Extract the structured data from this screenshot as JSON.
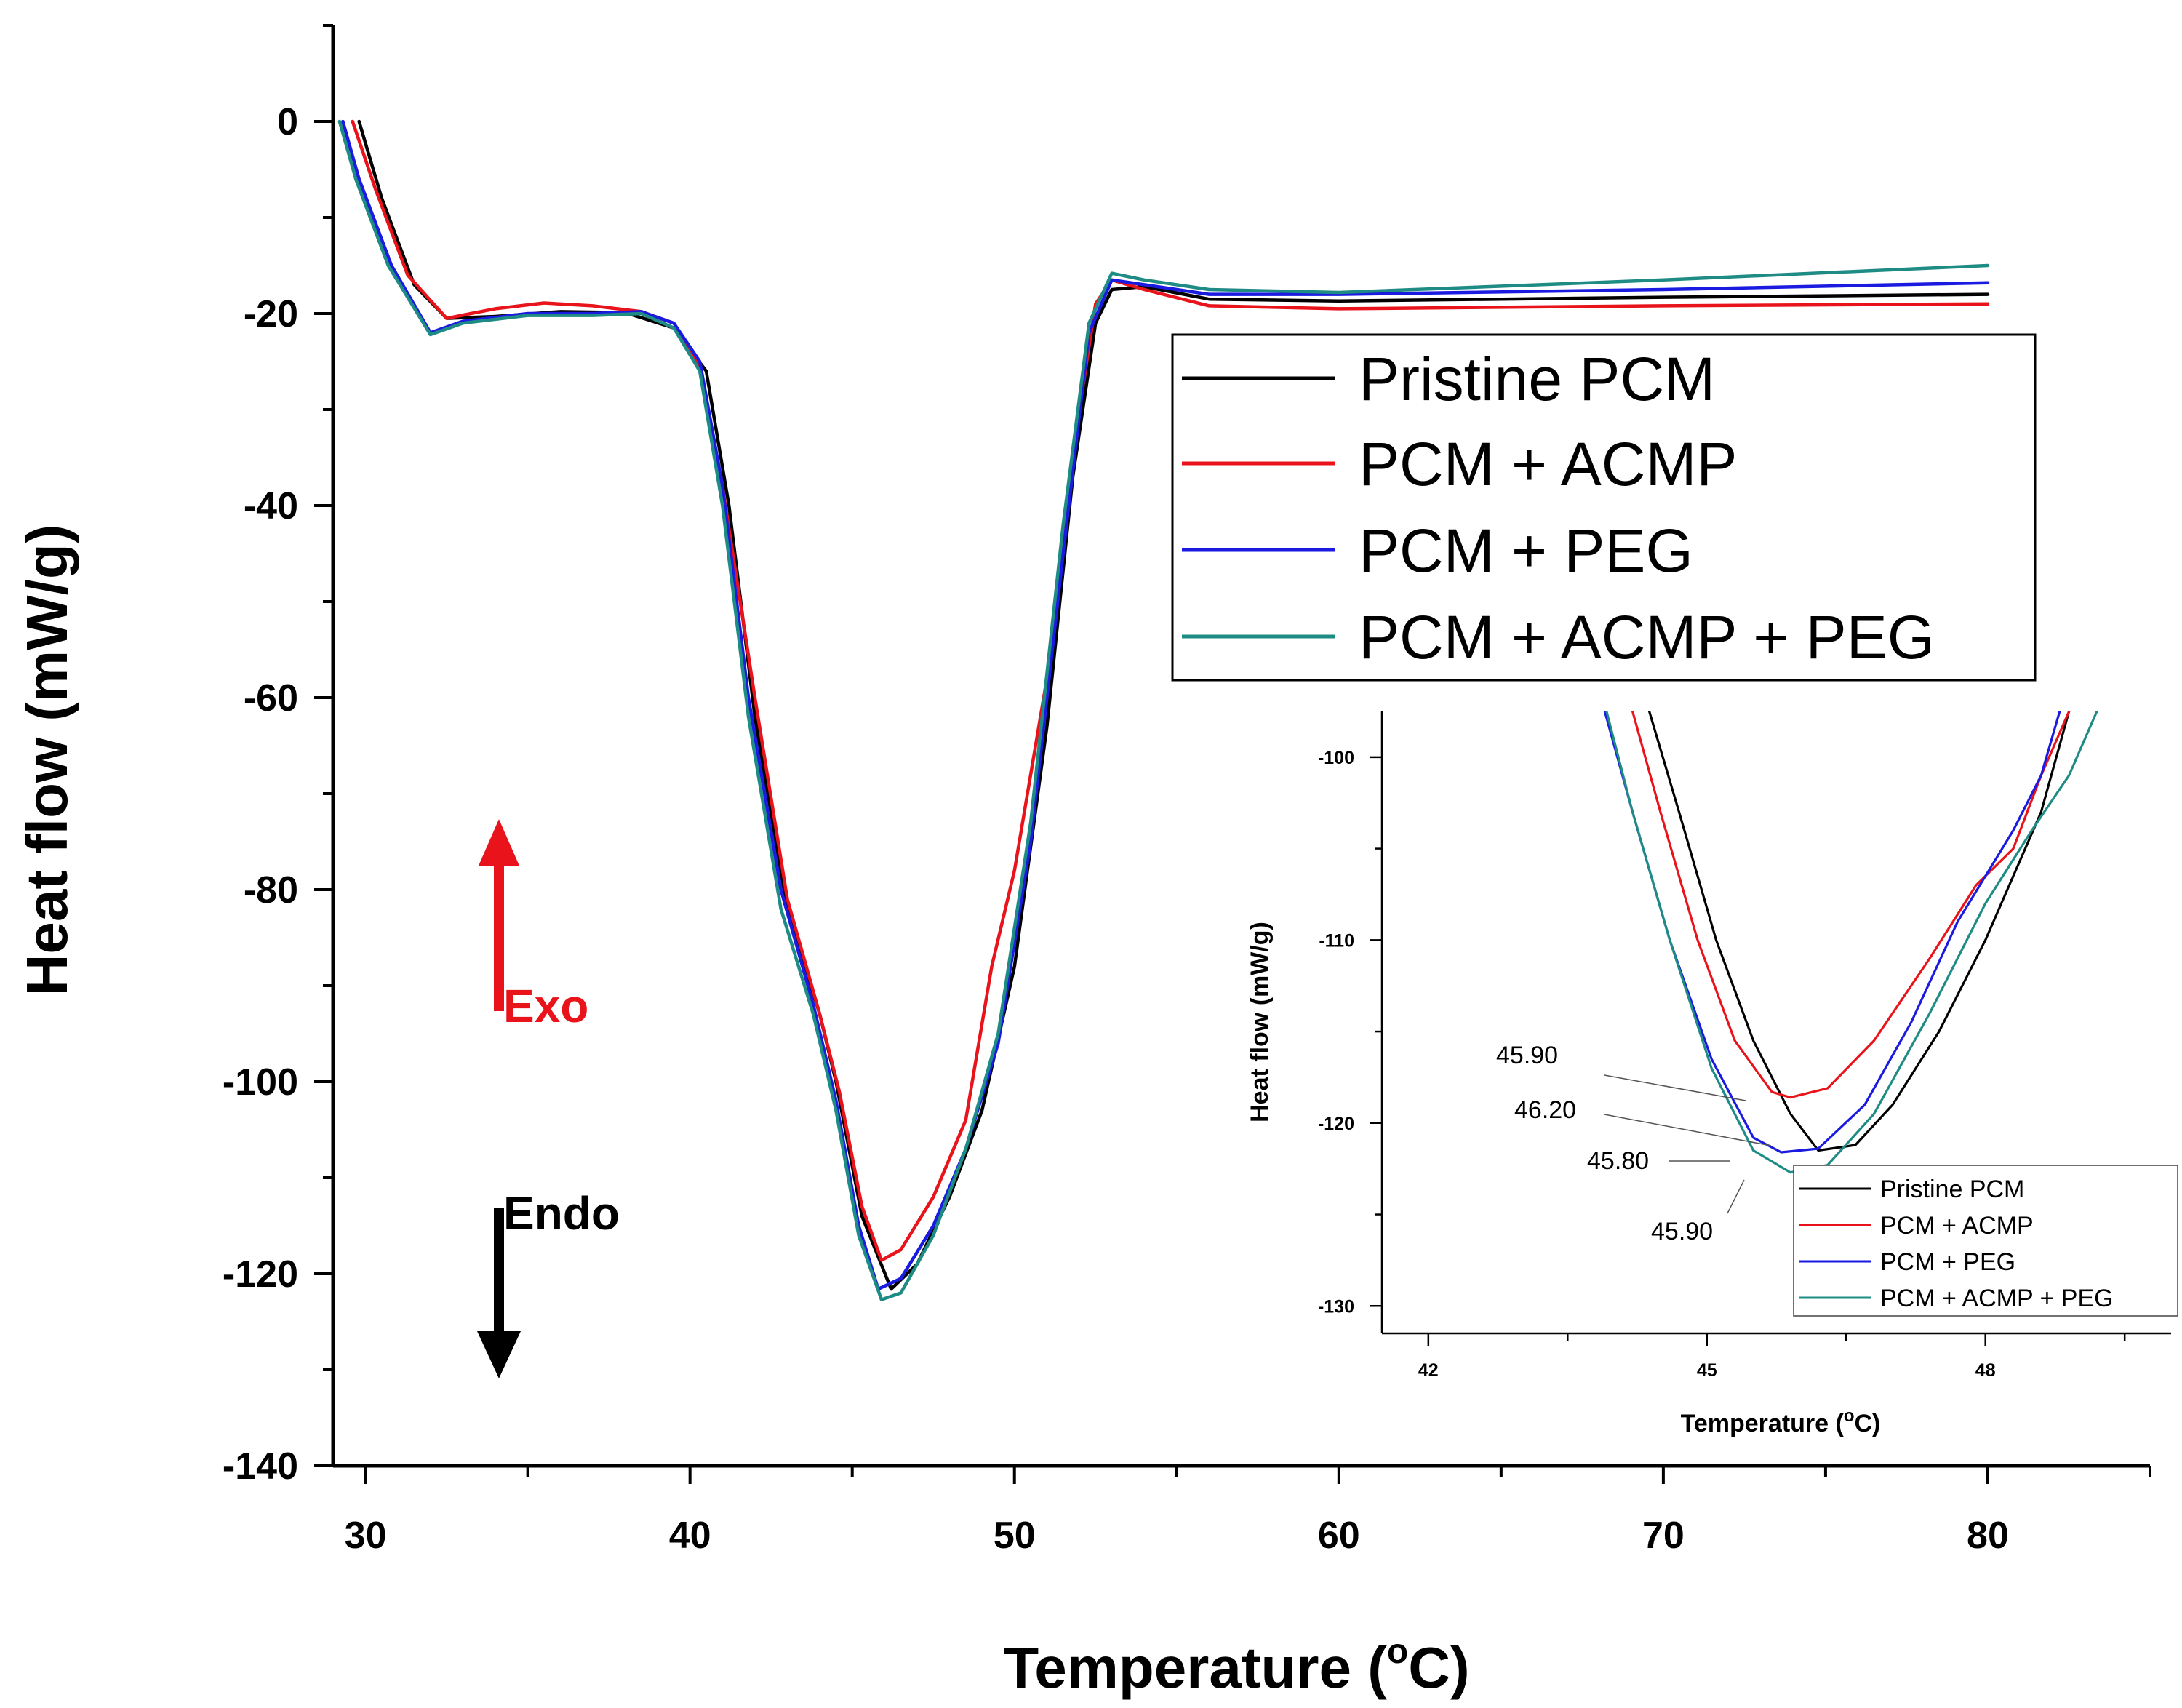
{
  "chart_data": [
    {
      "type": "line",
      "title": "",
      "xlabel": "Temperature (°C)",
      "xlabel_parts": {
        "main": "Temperature (",
        "sup": "o",
        "end": "C)"
      },
      "ylabel": "Heat flow (mW/g)",
      "xlim": [
        29,
        85
      ],
      "ylim": [
        -140,
        10
      ],
      "xticks": [
        30,
        40,
        50,
        60,
        70,
        80
      ],
      "yticks": [
        0,
        -20,
        -40,
        -60,
        -80,
        -100,
        -120,
        -140
      ],
      "xtick_labels": [
        "30",
        "40",
        "50",
        "60",
        "70",
        "80"
      ],
      "ytick_labels": [
        "0",
        "-20",
        "-40",
        "-60",
        "-80",
        "-100",
        "-120",
        "-140"
      ],
      "legend_position": "top-right",
      "series": [
        {
          "name": "Pristine PCM",
          "color": "#000000",
          "points": [
            [
              29.8,
              0
            ],
            [
              30.5,
              -8
            ],
            [
              31.5,
              -17
            ],
            [
              32.5,
              -20.5
            ],
            [
              34,
              -20.3
            ],
            [
              36,
              -19.8
            ],
            [
              38,
              -19.9
            ],
            [
              39.5,
              -21.5
            ],
            [
              40.5,
              -26
            ],
            [
              41.2,
              -40
            ],
            [
              42,
              -62
            ],
            [
              43,
              -82
            ],
            [
              44,
              -93
            ],
            [
              44.5,
              -100
            ],
            [
              45.3,
              -114
            ],
            [
              46.2,
              -121.6
            ],
            [
              47,
              -119
            ],
            [
              48,
              -112
            ],
            [
              49,
              -103
            ],
            [
              50,
              -88
            ],
            [
              51,
              -63
            ],
            [
              51.8,
              -37
            ],
            [
              52.5,
              -21
            ],
            [
              53,
              -17.5
            ],
            [
              54,
              -17.2
            ],
            [
              56,
              -18.5
            ],
            [
              60,
              -18.7
            ],
            [
              70,
              -18.3
            ],
            [
              80,
              -18
            ]
          ]
        },
        {
          "name": "PCM + ACMP",
          "color": "#e8131b",
          "points": [
            [
              29.6,
              0
            ],
            [
              30.3,
              -7
            ],
            [
              31.3,
              -16
            ],
            [
              32.5,
              -20.5
            ],
            [
              34,
              -19.5
            ],
            [
              35.5,
              -18.9
            ],
            [
              37,
              -19.2
            ],
            [
              38.5,
              -19.8
            ],
            [
              39.5,
              -21
            ],
            [
              40.3,
              -25.5
            ],
            [
              41,
              -38
            ],
            [
              42,
              -60
            ],
            [
              43,
              -81
            ],
            [
              44,
              -93
            ],
            [
              44.6,
              -101
            ],
            [
              45.3,
              -113
            ],
            [
              45.9,
              -118.6
            ],
            [
              46.5,
              -117.5
            ],
            [
              47.5,
              -112
            ],
            [
              48.5,
              -104
            ],
            [
              49.3,
              -88
            ],
            [
              50,
              -78
            ],
            [
              51,
              -58
            ],
            [
              52,
              -30
            ],
            [
              52.5,
              -19
            ],
            [
              53,
              -16.5
            ],
            [
              54,
              -17.5
            ],
            [
              56,
              -19.2
            ],
            [
              60,
              -19.5
            ],
            [
              70,
              -19.2
            ],
            [
              80,
              -19
            ]
          ]
        },
        {
          "name": "PCM + PEG",
          "color": "#1a1ae0",
          "points": [
            [
              29.3,
              0
            ],
            [
              29.8,
              -6
            ],
            [
              30.8,
              -15
            ],
            [
              32,
              -22
            ],
            [
              33,
              -20.8
            ],
            [
              35,
              -20
            ],
            [
              37,
              -20
            ],
            [
              38.5,
              -19.8
            ],
            [
              39.5,
              -21
            ],
            [
              40.3,
              -25
            ],
            [
              41,
              -38
            ],
            [
              41.8,
              -60
            ],
            [
              42.8,
              -80
            ],
            [
              43.8,
              -92
            ],
            [
              44.5,
              -102
            ],
            [
              45.2,
              -115
            ],
            [
              45.8,
              -121.6
            ],
            [
              46.5,
              -120.5
            ],
            [
              47.5,
              -115
            ],
            [
              48.5,
              -107
            ],
            [
              49.5,
              -96
            ],
            [
              50.5,
              -75
            ],
            [
              51.5,
              -45
            ],
            [
              52.3,
              -22
            ],
            [
              53,
              -16.5
            ],
            [
              54,
              -17
            ],
            [
              56,
              -18
            ],
            [
              60,
              -18
            ],
            [
              70,
              -17.5
            ],
            [
              80,
              -16.8
            ]
          ]
        },
        {
          "name": "PCM + ACMP + PEG",
          "color": "#1e8c84",
          "points": [
            [
              29.2,
              0
            ],
            [
              29.7,
              -6
            ],
            [
              30.7,
              -15
            ],
            [
              32,
              -22.2
            ],
            [
              33,
              -21
            ],
            [
              35,
              -20.2
            ],
            [
              37,
              -20.2
            ],
            [
              38.5,
              -20
            ],
            [
              39.5,
              -21.5
            ],
            [
              40.3,
              -26
            ],
            [
              41,
              -40
            ],
            [
              41.8,
              -62
            ],
            [
              42.8,
              -82
            ],
            [
              43.8,
              -93
            ],
            [
              44.5,
              -103
            ],
            [
              45.2,
              -116
            ],
            [
              45.9,
              -122.7
            ],
            [
              46.5,
              -122
            ],
            [
              47.5,
              -116
            ],
            [
              48.5,
              -107
            ],
            [
              49.5,
              -95
            ],
            [
              50.5,
              -73
            ],
            [
              51.5,
              -42
            ],
            [
              52.3,
              -21
            ],
            [
              53,
              -15.8
            ],
            [
              54,
              -16.5
            ],
            [
              56,
              -17.5
            ],
            [
              60,
              -17.8
            ],
            [
              70,
              -16.5
            ],
            [
              80,
              -15
            ]
          ]
        }
      ],
      "annotations": [
        {
          "text": "Exo",
          "color": "#e8131b",
          "direction": "up"
        },
        {
          "text": "Endo",
          "color": "#000000",
          "direction": "down"
        }
      ]
    },
    {
      "type": "line",
      "title": "",
      "xlabel": "Temperature (°C)",
      "xlabel_parts": {
        "main": "Temperature (",
        "sup": "o",
        "end": "C)"
      },
      "ylabel": "Heat flow (mW/g)",
      "xlim": [
        41.5,
        50
      ],
      "ylim": [
        -131.5,
        -97.5
      ],
      "xticks": [
        42,
        45,
        48
      ],
      "yticks": [
        -100,
        -110,
        -120,
        -130
      ],
      "xtick_labels": [
        "42",
        "45",
        "48"
      ],
      "ytick_labels": [
        "-100",
        "-110",
        "-120",
        "-130"
      ],
      "legend_position": "bottom-right",
      "series": [
        {
          "name": "Pristine PCM",
          "color": "#000000",
          "points": [
            [
              44.38,
              -97.5
            ],
            [
              44.7,
              -103
            ],
            [
              45.1,
              -110
            ],
            [
              45.5,
              -115.5
            ],
            [
              45.9,
              -119.5
            ],
            [
              46.2,
              -121.5
            ],
            [
              46.6,
              -121.2
            ],
            [
              47,
              -119
            ],
            [
              47.5,
              -115
            ],
            [
              48,
              -110
            ],
            [
              48.6,
              -103
            ],
            [
              48.9,
              -97.5
            ]
          ]
        },
        {
          "name": "PCM + ACMP",
          "color": "#e8131b",
          "points": [
            [
              44.2,
              -97.5
            ],
            [
              44.5,
              -103
            ],
            [
              44.9,
              -110
            ],
            [
              45.3,
              -115.5
            ],
            [
              45.7,
              -118.3
            ],
            [
              45.9,
              -118.6
            ],
            [
              46.3,
              -118.1
            ],
            [
              46.8,
              -115.5
            ],
            [
              47.4,
              -111
            ],
            [
              47.9,
              -107
            ],
            [
              48.3,
              -105
            ],
            [
              48.6,
              -101
            ],
            [
              48.9,
              -97.5
            ]
          ]
        },
        {
          "name": "PCM + PEG",
          "color": "#1a1ae0",
          "points": [
            [
              43.9,
              -97.5
            ],
            [
              44.2,
              -103
            ],
            [
              44.6,
              -110
            ],
            [
              45.05,
              -116.5
            ],
            [
              45.5,
              -120.8
            ],
            [
              45.8,
              -121.6
            ],
            [
              46.2,
              -121.4
            ],
            [
              46.7,
              -119
            ],
            [
              47.2,
              -114.5
            ],
            [
              47.7,
              -109
            ],
            [
              48.3,
              -104
            ],
            [
              48.6,
              -101
            ],
            [
              48.8,
              -97.5
            ]
          ]
        },
        {
          "name": "PCM + ACMP + PEG",
          "color": "#1e8c84",
          "points": [
            [
              43.92,
              -97.5
            ],
            [
              44.2,
              -103
            ],
            [
              44.6,
              -110
            ],
            [
              45.05,
              -117
            ],
            [
              45.5,
              -121.5
            ],
            [
              45.9,
              -122.7
            ],
            [
              46.3,
              -122.3
            ],
            [
              46.8,
              -119.5
            ],
            [
              47.4,
              -114
            ],
            [
              48,
              -108
            ],
            [
              48.5,
              -104
            ],
            [
              48.9,
              -101
            ],
            [
              49.2,
              -97.5
            ]
          ]
        }
      ],
      "point_labels": [
        {
          "text": "45.90",
          "target": [
            45.9,
            -118.6
          ]
        },
        {
          "text": "46.20",
          "target": [
            46.2,
            -121.5
          ]
        },
        {
          "text": "45.80",
          "target": [
            45.8,
            -121.6
          ]
        },
        {
          "text": "45.90",
          "target": [
            45.9,
            -122.7
          ]
        }
      ]
    }
  ]
}
